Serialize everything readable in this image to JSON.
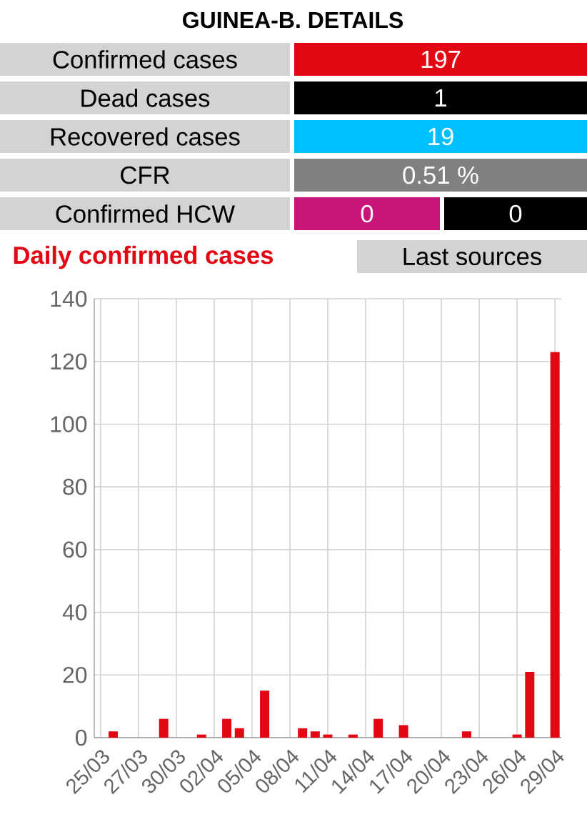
{
  "chart_data": [
    {
      "type": "other",
      "title": "GUINEA-B. DETAILS",
      "annotations": [
        "Confirmed cases",
        "197",
        "Dead cases",
        "1",
        "Recovered cases",
        "19",
        "CFR",
        "0.51 %",
        "Confirmed HCW",
        "0",
        "0",
        "Last sources"
      ]
    },
    {
      "type": "bar",
      "title": "Daily confirmed cases",
      "categories": [
        "25/03",
        null,
        null,
        "27/03",
        null,
        null,
        "30/03",
        null,
        null,
        "02/04",
        null,
        null,
        "05/04",
        null,
        null,
        "08/04",
        null,
        null,
        "11/04",
        null,
        null,
        "14/04",
        null,
        null,
        "17/04",
        null,
        null,
        "20/04",
        null,
        null,
        "23/04",
        null,
        null,
        "26/04",
        null,
        null,
        "29/04"
      ],
      "values": [
        0,
        2,
        0,
        0,
        0,
        6,
        0,
        0,
        1,
        0,
        6,
        3,
        0,
        15,
        0,
        0,
        3,
        2,
        1,
        0,
        1,
        0,
        6,
        0,
        4,
        0,
        0,
        0,
        0,
        2,
        0,
        0,
        0,
        1,
        21,
        0,
        123
      ],
      "color": "#e30613",
      "ylim": [
        0,
        140
      ],
      "yticks": [
        0,
        20,
        40,
        60,
        80,
        100,
        120,
        140
      ],
      "grid": true
    }
  ]
}
